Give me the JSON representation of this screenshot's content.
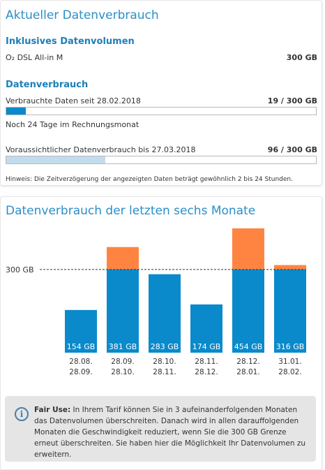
{
  "current": {
    "title": "Aktueller Datenverbrauch",
    "inclusive_heading": "Inklusives Datenvolumen",
    "plan_name": "O₂ DSL All-in M",
    "plan_volume": "300 GB",
    "usage_heading": "Datenverbrauch",
    "used_label": "Verbrauchte Daten seit 28.02.2018",
    "used_value": "19 / 300 GB",
    "used_fraction": 0.0633,
    "days_left": "Noch 24 Tage im Rechnungsmonat",
    "forecast_label": "Voraussichtlicher Datenverbrauch bis 27.03.2018",
    "forecast_value": "96 / 300 GB",
    "forecast_fraction": 0.32,
    "hint": "Hinweis: Die Zeitverzögerung der angezeigten Daten beträgt gewöhnlich 2 bis 24 Stunden."
  },
  "history": {
    "title": "Datenverbrauch der letzten sechs Monate",
    "info_bold": "Fair Use:",
    "info_text": "In Ihrem Tarif können Sie in 3 aufeinanderfolgenden Monaten das Datenvolumen überschreiten. Danach wird in allen darauffolgenden Monaten die Geschwindigkeit reduziert, wenn Sie die 300 GB Grenze erneut überschreiten. Sie haben hier die Möglichkeit Ihr Datenvolumen zu erweitern."
  },
  "colors": {
    "accent_blue": "#0a8acb",
    "over_limit_orange": "#ff8442",
    "progress_used": "#0a8acb",
    "progress_forecast": "#c3dbee",
    "heading_blue": "#2a8fc8"
  },
  "chart_data": {
    "type": "bar",
    "categories": [
      "28.08.–28.09.",
      "28.09.–28.10.",
      "28.10.–28.11.",
      "28.11.–28.12.",
      "28.12.–28.01.",
      "31.01.–28.02."
    ],
    "category_lines": [
      [
        "28.08.",
        "28.09."
      ],
      [
        "28.09.",
        "28.10."
      ],
      [
        "28.10.",
        "28.11."
      ],
      [
        "28.11.",
        "28.12."
      ],
      [
        "28.12.",
        "28.01."
      ],
      [
        "31.01.",
        "28.02."
      ]
    ],
    "values": [
      154,
      381,
      283,
      174,
      454,
      316
    ],
    "value_labels": [
      "154 GB",
      "381 GB",
      "283 GB",
      "174 GB",
      "454 GB",
      "316 GB"
    ],
    "limit": 300,
    "limit_label": "300 GB",
    "ylim": [
      0,
      470
    ],
    "title": "",
    "xlabel": "",
    "ylabel": ""
  }
}
